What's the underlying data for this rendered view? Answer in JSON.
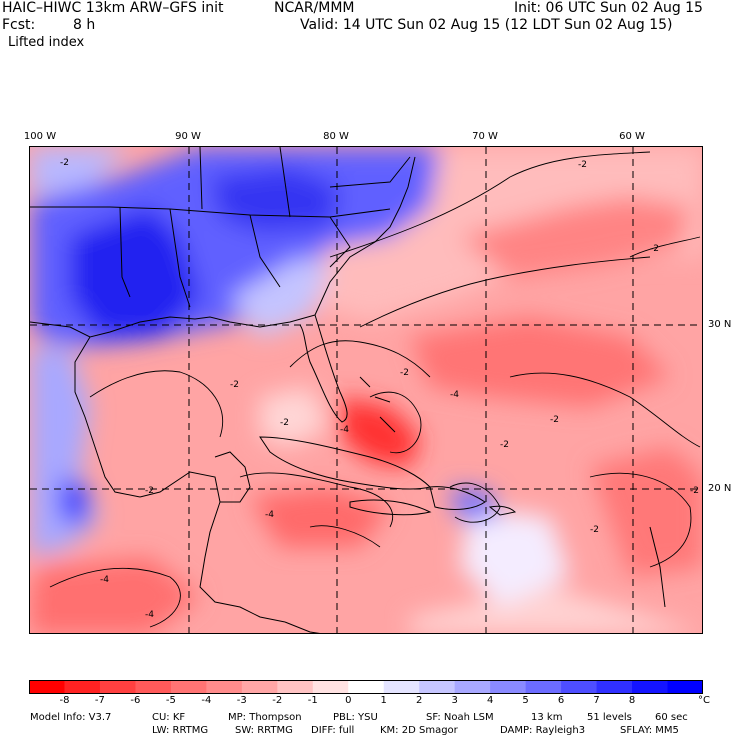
{
  "header": {
    "model": "HAIC–HIWC 13km ARW–GFS init",
    "org": "NCAR/MMM",
    "init": "Init: 06 UTC Sun 02 Aug 15",
    "fcst_label": "Fcst:",
    "fcst_value": "8 h",
    "valid": "Valid: 14 UTC Sun 02 Aug 15 (12 LDT Sun 02 Aug 15)",
    "field": "Lifted index"
  },
  "map": {
    "lon_labels": [
      "100 W",
      "90 W",
      "80 W",
      "70 W",
      "60 W"
    ],
    "lat_labels": [
      "30 N",
      "20 N"
    ],
    "contour_labels": [
      "-2",
      "-2",
      "-2",
      "-2",
      "-2",
      "-2",
      "-4",
      "-4",
      "-2",
      "-2",
      "-4",
      "-4",
      "-2",
      "-4",
      "-2",
      "-2"
    ],
    "colors": {
      "frame": "#000000",
      "grid": "#000000"
    }
  },
  "colorbar": {
    "labels": [
      "-8",
      "-7",
      "-6",
      "-5",
      "-4",
      "-3",
      "-2",
      "-1",
      "0",
      "1",
      "2",
      "3",
      "4",
      "5",
      "6",
      "7",
      "8"
    ],
    "unit": "°C",
    "colors": [
      "#ff0000",
      "#ff2222",
      "#ff4040",
      "#ff5a5a",
      "#ff7474",
      "#ff8c8c",
      "#ffa6a6",
      "#ffc4c4",
      "#ffe2e2",
      "#ffffff",
      "#e4e4ff",
      "#c6c6ff",
      "#a8a8ff",
      "#8a8aff",
      "#6c6cff",
      "#4e4eff",
      "#3030ff",
      "#1414ff",
      "#0000ff"
    ]
  },
  "footer": {
    "row1": [
      "Model Info: V3.7",
      "CU: KF",
      "MP: Thompson",
      "PBL: YSU",
      "SF: Noah LSM",
      "13 km",
      "51 levels",
      "60 sec"
    ],
    "row2": [
      "LW: RRTMG",
      "SW: RRTMG",
      "DIFF: full",
      "KM: 2D Smagor",
      "DAMP: Rayleigh3",
      "SFLAY: MM5"
    ]
  }
}
